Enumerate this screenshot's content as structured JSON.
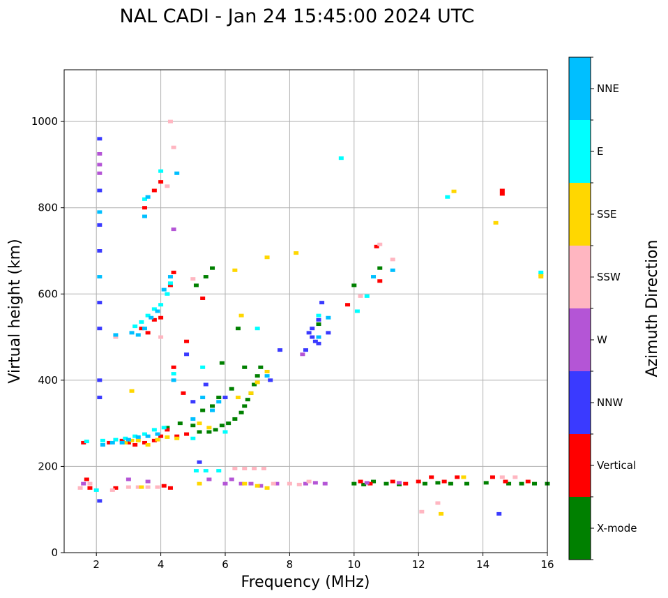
{
  "chart_data": {
    "type": "scatter",
    "title": "NAL CADI - Jan 24 15:45:00 2024 UTC",
    "xlabel": "Frequency (MHz)",
    "ylabel": "Virtual height (km)",
    "xlim": [
      1,
      16
    ],
    "ylim": [
      0,
      1120
    ],
    "xticks": [
      2,
      4,
      6,
      8,
      10,
      12,
      14,
      16
    ],
    "yticks": [
      0,
      200,
      400,
      600,
      800,
      1000
    ],
    "grid": true,
    "colorbar": {
      "title": "Azimuth Direction",
      "categories": [
        {
          "label": "X-mode",
          "color": "#008000"
        },
        {
          "label": "Vertical",
          "color": "#ff0000"
        },
        {
          "label": "NNW",
          "color": "#3a3aff"
        },
        {
          "label": "W",
          "color": "#b455d6"
        },
        {
          "label": "SSW",
          "color": "#ffb6c1"
        },
        {
          "label": "SSE",
          "color": "#ffd700"
        },
        {
          "label": "E",
          "color": "#00ffff"
        },
        {
          "label": "NNE",
          "color": "#00bfff"
        }
      ]
    },
    "series": [
      {
        "name": "X-mode",
        "points": [
          [
            4.2,
            290
          ],
          [
            4.6,
            300
          ],
          [
            5.0,
            295
          ],
          [
            5.2,
            280
          ],
          [
            5.5,
            280
          ],
          [
            5.7,
            285
          ],
          [
            5.9,
            295
          ],
          [
            6.1,
            300
          ],
          [
            6.3,
            310
          ],
          [
            6.5,
            325
          ],
          [
            6.6,
            340
          ],
          [
            6.7,
            355
          ],
          [
            6.8,
            370
          ],
          [
            6.9,
            390
          ],
          [
            7.0,
            410
          ],
          [
            7.1,
            430
          ],
          [
            5.3,
            330
          ],
          [
            5.6,
            340
          ],
          [
            5.8,
            360
          ],
          [
            6.2,
            380
          ],
          [
            5.1,
            620
          ],
          [
            5.4,
            640
          ],
          [
            5.6,
            660
          ],
          [
            6.6,
            430
          ],
          [
            10.0,
            160
          ],
          [
            10.3,
            158
          ],
          [
            10.6,
            165
          ],
          [
            11.0,
            160
          ],
          [
            11.4,
            158
          ],
          [
            12.2,
            160
          ],
          [
            12.6,
            162
          ],
          [
            13.0,
            160
          ],
          [
            13.5,
            160
          ],
          [
            14.1,
            162
          ],
          [
            14.8,
            160
          ],
          [
            15.2,
            160
          ],
          [
            15.6,
            160
          ],
          [
            16.0,
            160
          ],
          [
            10.0,
            620
          ],
          [
            10.8,
            660
          ],
          [
            8.9,
            530
          ],
          [
            5.9,
            440
          ],
          [
            6.4,
            520
          ]
        ]
      },
      {
        "name": "Vertical",
        "points": [
          [
            1.6,
            255
          ],
          [
            1.7,
            170
          ],
          [
            1.8,
            150
          ],
          [
            2.4,
            255
          ],
          [
            2.8,
            260
          ],
          [
            3.0,
            255
          ],
          [
            3.2,
            250
          ],
          [
            3.5,
            255
          ],
          [
            3.8,
            260
          ],
          [
            4.0,
            270
          ],
          [
            4.2,
            285
          ],
          [
            4.5,
            270
          ],
          [
            4.8,
            275
          ],
          [
            3.4,
            520
          ],
          [
            3.6,
            510
          ],
          [
            3.8,
            540
          ],
          [
            4.0,
            545
          ],
          [
            4.3,
            620
          ],
          [
            4.4,
            650
          ],
          [
            4.0,
            860
          ],
          [
            3.8,
            840
          ],
          [
            3.5,
            800
          ],
          [
            4.1,
            155
          ],
          [
            4.3,
            150
          ],
          [
            10.2,
            165
          ],
          [
            10.5,
            160
          ],
          [
            11.2,
            165
          ],
          [
            11.6,
            160
          ],
          [
            12.0,
            165
          ],
          [
            12.4,
            175
          ],
          [
            12.8,
            165
          ],
          [
            13.2,
            175
          ],
          [
            14.3,
            175
          ],
          [
            14.7,
            165
          ],
          [
            15.4,
            165
          ],
          [
            14.6,
            840
          ],
          [
            14.6,
            832
          ],
          [
            10.8,
            630
          ],
          [
            10.7,
            710
          ],
          [
            9.8,
            575
          ],
          [
            5.3,
            590
          ],
          [
            4.8,
            490
          ],
          [
            4.4,
            430
          ],
          [
            2.6,
            150
          ],
          [
            4.7,
            370
          ]
        ]
      },
      {
        "name": "NNW",
        "points": [
          [
            2.1,
            960
          ],
          [
            2.1,
            840
          ],
          [
            2.1,
            760
          ],
          [
            2.1,
            700
          ],
          [
            2.1,
            580
          ],
          [
            2.1,
            520
          ],
          [
            2.1,
            400
          ],
          [
            2.1,
            360
          ],
          [
            2.1,
            120
          ],
          [
            8.6,
            510
          ],
          [
            8.7,
            500
          ],
          [
            8.8,
            490
          ],
          [
            8.9,
            485
          ],
          [
            8.7,
            520
          ],
          [
            8.9,
            540
          ],
          [
            9.0,
            580
          ],
          [
            8.5,
            470
          ],
          [
            5.0,
            350
          ],
          [
            5.4,
            390
          ],
          [
            7.4,
            400
          ],
          [
            7.7,
            470
          ],
          [
            14.5,
            90
          ],
          [
            5.2,
            210
          ],
          [
            4.8,
            460
          ],
          [
            6.0,
            360
          ],
          [
            9.2,
            510
          ]
        ]
      },
      {
        "name": "W",
        "points": [
          [
            2.1,
            925
          ],
          [
            2.1,
            900
          ],
          [
            2.1,
            880
          ],
          [
            1.6,
            160
          ],
          [
            6.5,
            160
          ],
          [
            6.8,
            160
          ],
          [
            7.1,
            155
          ],
          [
            7.6,
            160
          ],
          [
            8.5,
            160
          ],
          [
            8.8,
            162
          ],
          [
            9.1,
            160
          ],
          [
            10.4,
            162
          ],
          [
            11.4,
            162
          ],
          [
            8.4,
            460
          ],
          [
            6.2,
            170
          ],
          [
            5.5,
            170
          ],
          [
            3.0,
            170
          ],
          [
            3.6,
            165
          ],
          [
            4.4,
            750
          ],
          [
            6.0,
            160
          ]
        ]
      },
      {
        "name": "SSW",
        "points": [
          [
            1.5,
            150
          ],
          [
            1.8,
            160
          ],
          [
            2.5,
            145
          ],
          [
            3.0,
            152
          ],
          [
            3.3,
            152
          ],
          [
            3.6,
            152
          ],
          [
            3.9,
            152
          ],
          [
            6.3,
            195
          ],
          [
            6.6,
            195
          ],
          [
            6.9,
            195
          ],
          [
            7.2,
            195
          ],
          [
            7.5,
            160
          ],
          [
            8.0,
            160
          ],
          [
            8.3,
            158
          ],
          [
            8.6,
            165
          ],
          [
            12.1,
            95
          ],
          [
            12.6,
            115
          ],
          [
            14.6,
            175
          ],
          [
            15.0,
            175
          ],
          [
            11.2,
            680
          ],
          [
            10.8,
            715
          ],
          [
            4.3,
            1000
          ],
          [
            4.0,
            500
          ],
          [
            2.6,
            500
          ],
          [
            4.4,
            940
          ],
          [
            10.2,
            595
          ],
          [
            5.0,
            635
          ],
          [
            4.2,
            850
          ]
        ]
      },
      {
        "name": "SSE",
        "points": [
          [
            2.9,
            255
          ],
          [
            3.1,
            260
          ],
          [
            3.3,
            260
          ],
          [
            3.6,
            250
          ],
          [
            3.9,
            262
          ],
          [
            4.2,
            268
          ],
          [
            4.5,
            265
          ],
          [
            5.2,
            300
          ],
          [
            5.5,
            290
          ],
          [
            6.4,
            360
          ],
          [
            6.8,
            370
          ],
          [
            7.0,
            395
          ],
          [
            7.3,
            420
          ],
          [
            6.5,
            550
          ],
          [
            6.3,
            655
          ],
          [
            7.3,
            685
          ],
          [
            8.2,
            695
          ],
          [
            3.1,
            375
          ],
          [
            6.6,
            160
          ],
          [
            7.0,
            155
          ],
          [
            7.3,
            150
          ],
          [
            12.7,
            90
          ],
          [
            13.1,
            838
          ],
          [
            13.4,
            175
          ],
          [
            14.4,
            765
          ],
          [
            15.8,
            640
          ],
          [
            15.8,
            645
          ],
          [
            3.4,
            152
          ],
          [
            5.2,
            160
          ]
        ]
      },
      {
        "name": "E",
        "points": [
          [
            1.7,
            258
          ],
          [
            2.2,
            260
          ],
          [
            2.6,
            262
          ],
          [
            2.9,
            265
          ],
          [
            3.2,
            270
          ],
          [
            3.5,
            275
          ],
          [
            3.8,
            285
          ],
          [
            4.1,
            290
          ],
          [
            3.2,
            525
          ],
          [
            3.4,
            535
          ],
          [
            3.6,
            550
          ],
          [
            3.8,
            565
          ],
          [
            4.0,
            575
          ],
          [
            4.2,
            600
          ],
          [
            4.3,
            625
          ],
          [
            3.5,
            820
          ],
          [
            4.0,
            885
          ],
          [
            5.1,
            190
          ],
          [
            5.4,
            190
          ],
          [
            5.8,
            190
          ],
          [
            4.4,
            415
          ],
          [
            5.0,
            265
          ],
          [
            5.3,
            430
          ],
          [
            7.0,
            520
          ],
          [
            8.9,
            550
          ],
          [
            10.4,
            595
          ],
          [
            9.6,
            915
          ],
          [
            12.9,
            825
          ],
          [
            15.8,
            650
          ],
          [
            2.0,
            145
          ],
          [
            6.0,
            280
          ],
          [
            10.1,
            560
          ]
        ]
      },
      {
        "name": "NNE",
        "points": [
          [
            2.2,
            250
          ],
          [
            2.5,
            255
          ],
          [
            2.8,
            255
          ],
          [
            3.0,
            262
          ],
          [
            3.3,
            268
          ],
          [
            3.6,
            270
          ],
          [
            3.9,
            275
          ],
          [
            3.1,
            510
          ],
          [
            3.3,
            505
          ],
          [
            3.5,
            520
          ],
          [
            3.7,
            545
          ],
          [
            3.9,
            560
          ],
          [
            4.1,
            610
          ],
          [
            4.3,
            640
          ],
          [
            2.1,
            640
          ],
          [
            2.1,
            790
          ],
          [
            3.5,
            780
          ],
          [
            3.6,
            825
          ],
          [
            4.5,
            880
          ],
          [
            5.3,
            360
          ],
          [
            5.6,
            330
          ],
          [
            5.0,
            310
          ],
          [
            7.3,
            410
          ],
          [
            8.9,
            500
          ],
          [
            9.2,
            545
          ],
          [
            10.6,
            640
          ],
          [
            11.2,
            655
          ],
          [
            2.6,
            505
          ],
          [
            5.8,
            350
          ],
          [
            4.4,
            400
          ]
        ]
      }
    ]
  }
}
